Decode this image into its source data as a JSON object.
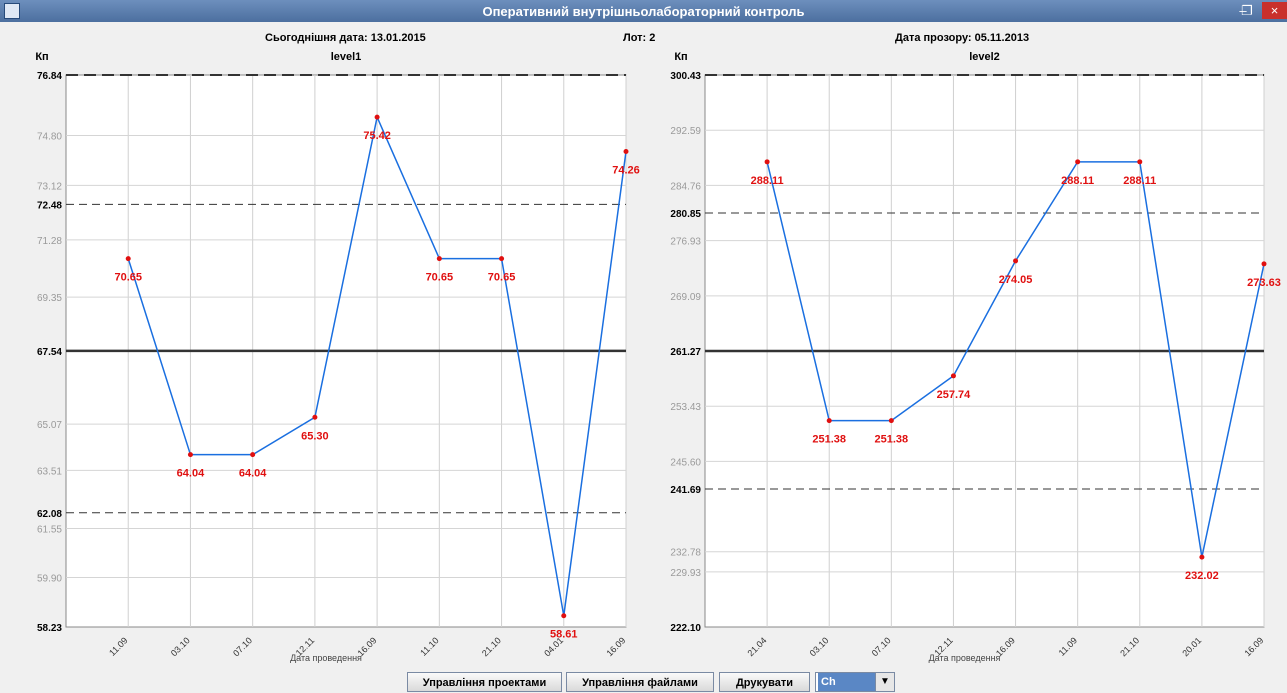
{
  "window": {
    "title": "Оперативний внутрішньолабораторний контроль"
  },
  "header": {
    "today": "Сьогоднішня дата: 13.01.2015",
    "lot": "Лот: 2",
    "expiry": "Дата прозору: 05.11.2013"
  },
  "colors": {
    "line": "#1a6fe0",
    "point": "#e01010",
    "label": "#e01010",
    "mean": "#333333"
  },
  "chart_data": [
    {
      "type": "line",
      "title": "level1",
      "ylabel": "Кп",
      "xlabel": "Дата проведення",
      "ylim": [
        58.23,
        76.84
      ],
      "ticks": [
        {
          "v": 58.23,
          "label": "58.23",
          "major": true
        },
        {
          "v": 59.9,
          "label": "59.90",
          "major": false
        },
        {
          "v": 61.55,
          "label": "61.55",
          "major": false
        },
        {
          "v": 62.08,
          "label": "62.08",
          "major": true
        },
        {
          "v": 63.51,
          "label": "63.51",
          "major": false
        },
        {
          "v": 65.07,
          "label": "65.07",
          "major": false
        },
        {
          "v": 67.54,
          "label": "67.54",
          "major": true
        },
        {
          "v": 69.35,
          "label": "69.35",
          "major": false
        },
        {
          "v": 71.28,
          "label": "71.28",
          "major": false
        },
        {
          "v": 72.48,
          "label": "72.48",
          "major": true
        },
        {
          "v": 73.12,
          "label": "73.12",
          "major": false
        },
        {
          "v": 74.8,
          "label": "74.80",
          "major": false
        },
        {
          "v": 76.84,
          "label": "76.84",
          "major": true
        }
      ],
      "mean": 67.54,
      "limits": [
        62.08,
        72.48,
        76.84
      ],
      "categories": [
        "11.09",
        "03.10",
        "07.10",
        "12.11",
        "16.09",
        "11.10",
        "21.10",
        "04.01",
        "16.09"
      ],
      "values": [
        70.65,
        64.04,
        64.04,
        65.3,
        75.42,
        70.65,
        70.65,
        58.61,
        74.26
      ],
      "value_labels": [
        "70.65",
        "64.04",
        "64.04",
        "65.30",
        "75.42",
        "70.65",
        "70.65",
        "58.61",
        "74.26"
      ]
    },
    {
      "type": "line",
      "title": "level2",
      "ylabel": "Кп",
      "xlabel": "Дата проведення",
      "ylim": [
        222.1,
        300.43
      ],
      "ticks": [
        {
          "v": 222.1,
          "label": "222.10",
          "major": true
        },
        {
          "v": 229.93,
          "label": "229.93",
          "major": false
        },
        {
          "v": 232.78,
          "label": "232.78",
          "major": false
        },
        {
          "v": 241.69,
          "label": "241.69",
          "major": true
        },
        {
          "v": 245.6,
          "label": "245.60",
          "major": false
        },
        {
          "v": 253.43,
          "label": "253.43",
          "major": false
        },
        {
          "v": 261.27,
          "label": "261.27",
          "major": true
        },
        {
          "v": 269.09,
          "label": "269.09",
          "major": false
        },
        {
          "v": 276.93,
          "label": "276.93",
          "major": false
        },
        {
          "v": 280.85,
          "label": "280.85",
          "major": true
        },
        {
          "v": 284.76,
          "label": "284.76",
          "major": false
        },
        {
          "v": 292.59,
          "label": "292.59",
          "major": false
        },
        {
          "v": 300.43,
          "label": "300.43",
          "major": true
        }
      ],
      "mean": 261.27,
      "limits": [
        241.69,
        280.85,
        300.43
      ],
      "categories": [
        "21.04",
        "03.10",
        "07.10",
        "12.11",
        "16.09",
        "11.09",
        "21.10",
        "20.01",
        "16.09"
      ],
      "values": [
        288.11,
        251.38,
        251.38,
        257.74,
        274.05,
        288.11,
        288.11,
        232.02,
        273.63
      ],
      "value_labels": [
        "288.11",
        "251.38",
        "251.38",
        "257.74",
        "274.05",
        "288.11",
        "288.11",
        "232.02",
        "273.63"
      ]
    }
  ],
  "bottom": {
    "btn_projects": "Управління проектами",
    "btn_files": "Управління файлами",
    "btn_print": "Друкувати",
    "select_value": "Ch"
  }
}
